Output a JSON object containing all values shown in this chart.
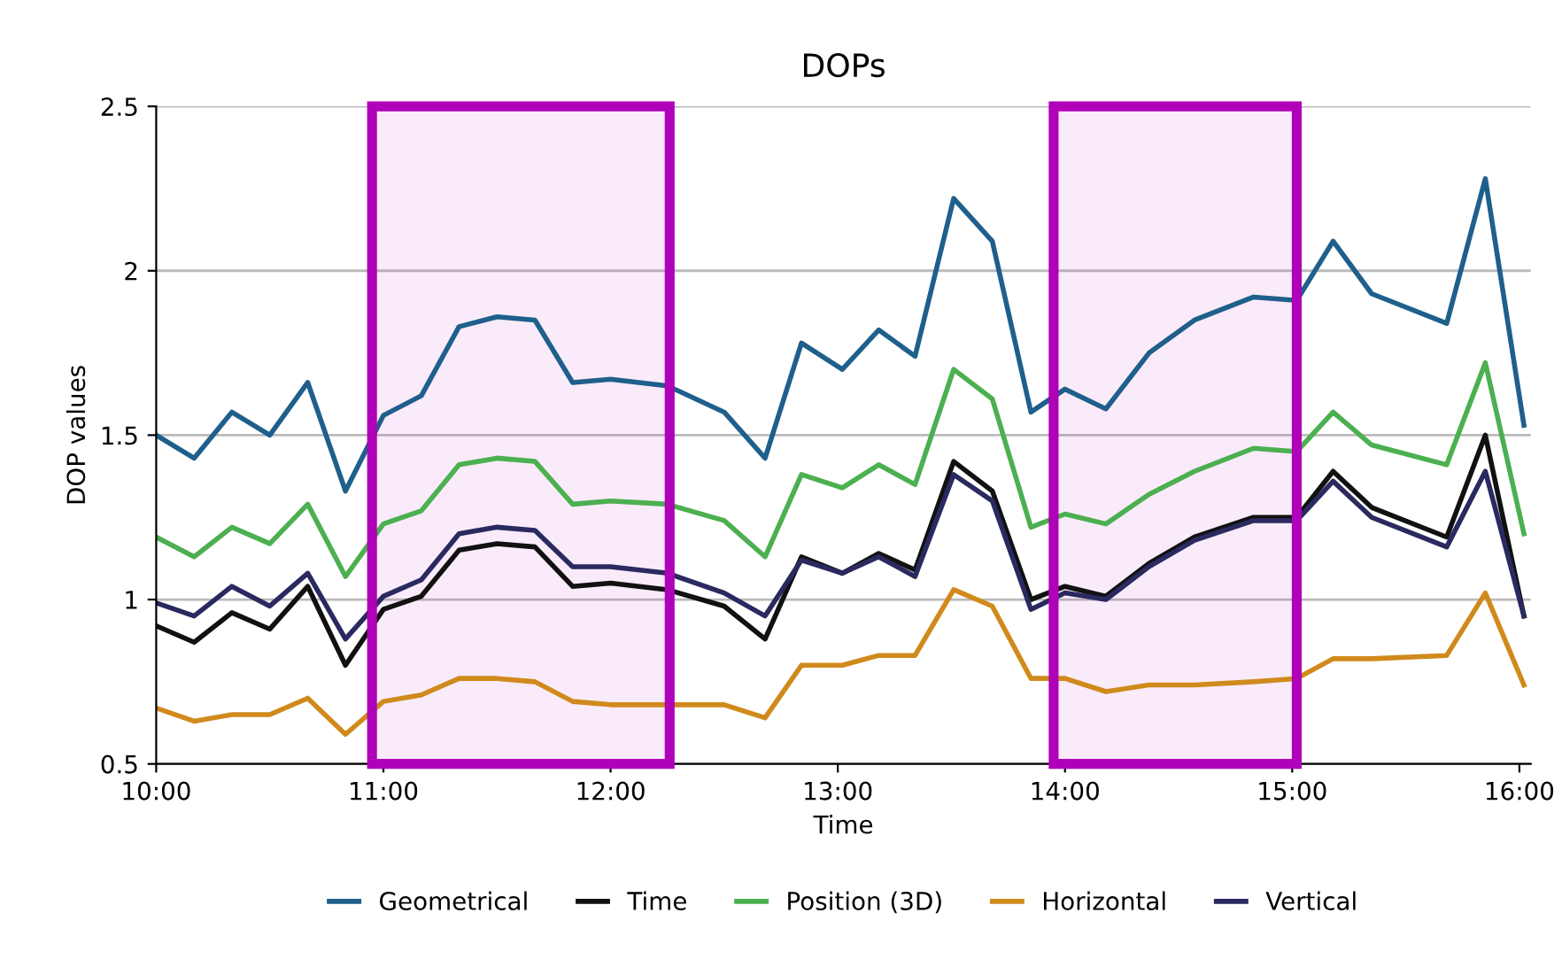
{
  "chart_data": {
    "type": "line",
    "title": "DOPs",
    "xlabel": "Time",
    "ylabel": "DOP values",
    "x": [
      10,
      10.167,
      10.333,
      10.5,
      10.667,
      10.833,
      11,
      11.167,
      11.333,
      11.5,
      11.667,
      11.833,
      12,
      12.25,
      12.5,
      12.68,
      12.84,
      13.02,
      13.18,
      13.34,
      13.51,
      13.68,
      13.85,
      14.0,
      14.18,
      14.37,
      14.57,
      14.83,
      15.02,
      15.18,
      15.35,
      15.68,
      15.85,
      16.02
    ],
    "series": [
      {
        "name": "Geometrical",
        "color": "#1f5f8b",
        "values": [
          1.5,
          1.43,
          1.57,
          1.5,
          1.66,
          1.33,
          1.56,
          1.62,
          1.83,
          1.86,
          1.85,
          1.66,
          1.67,
          1.65,
          1.57,
          1.43,
          1.78,
          1.7,
          1.82,
          1.74,
          2.22,
          2.09,
          1.57,
          1.64,
          1.58,
          1.75,
          1.85,
          1.92,
          1.91,
          2.09,
          1.93,
          1.84,
          2.28,
          1.53
        ]
      },
      {
        "name": "Time",
        "color": "#111111",
        "values": [
          0.92,
          0.87,
          0.96,
          0.91,
          1.04,
          0.8,
          0.97,
          1.01,
          1.15,
          1.17,
          1.16,
          1.04,
          1.05,
          1.03,
          0.98,
          0.88,
          1.13,
          1.08,
          1.14,
          1.09,
          1.42,
          1.33,
          1.0,
          1.04,
          1.01,
          1.11,
          1.19,
          1.25,
          1.25,
          1.39,
          1.28,
          1.19,
          1.5,
          0.95
        ]
      },
      {
        "name": "Position (3D)",
        "color": "#4caf50",
        "values": [
          1.19,
          1.13,
          1.22,
          1.17,
          1.29,
          1.07,
          1.23,
          1.27,
          1.41,
          1.43,
          1.42,
          1.29,
          1.3,
          1.29,
          1.24,
          1.13,
          1.38,
          1.34,
          1.41,
          1.35,
          1.7,
          1.61,
          1.22,
          1.26,
          1.23,
          1.32,
          1.39,
          1.46,
          1.45,
          1.57,
          1.47,
          1.41,
          1.72,
          1.2
        ]
      },
      {
        "name": "Horizontal",
        "color": "#d08a1c",
        "values": [
          0.67,
          0.63,
          0.65,
          0.65,
          0.7,
          0.59,
          0.69,
          0.71,
          0.76,
          0.76,
          0.75,
          0.69,
          0.68,
          0.68,
          0.68,
          0.64,
          0.8,
          0.8,
          0.83,
          0.83,
          1.03,
          0.98,
          0.76,
          0.76,
          0.72,
          0.74,
          0.74,
          0.75,
          0.76,
          0.82,
          0.82,
          0.83,
          1.02,
          0.74
        ]
      },
      {
        "name": "Vertical",
        "color": "#2a2a60",
        "values": [
          0.99,
          0.95,
          1.04,
          0.98,
          1.08,
          0.88,
          1.01,
          1.06,
          1.2,
          1.22,
          1.21,
          1.1,
          1.1,
          1.08,
          1.02,
          0.95,
          1.12,
          1.08,
          1.13,
          1.07,
          1.38,
          1.3,
          0.97,
          1.02,
          1.0,
          1.1,
          1.18,
          1.24,
          1.24,
          1.36,
          1.25,
          1.16,
          1.39,
          0.95
        ]
      }
    ],
    "xlim": [
      10,
      16.05
    ],
    "xticks": [
      {
        "value": 10,
        "label": "10:00"
      },
      {
        "value": 11,
        "label": "11:00"
      },
      {
        "value": 12,
        "label": "12:00"
      },
      {
        "value": 13,
        "label": "13:00"
      },
      {
        "value": 14,
        "label": "14:00"
      },
      {
        "value": 15,
        "label": "15:00"
      },
      {
        "value": 16,
        "label": "16:00"
      }
    ],
    "ylim": [
      0.5,
      2.5
    ],
    "yticks": [
      0.5,
      1,
      1.5,
      2,
      2.5
    ],
    "bands": [
      {
        "axis": "x",
        "from": 10.95,
        "to": 12.26,
        "color": "#b000b8"
      },
      {
        "axis": "x",
        "from": 13.95,
        "to": 15.02,
        "color": "#b000b8"
      }
    ],
    "grid": "y",
    "legend": "bottom",
    "marker": "none",
    "line_style": "solid"
  }
}
